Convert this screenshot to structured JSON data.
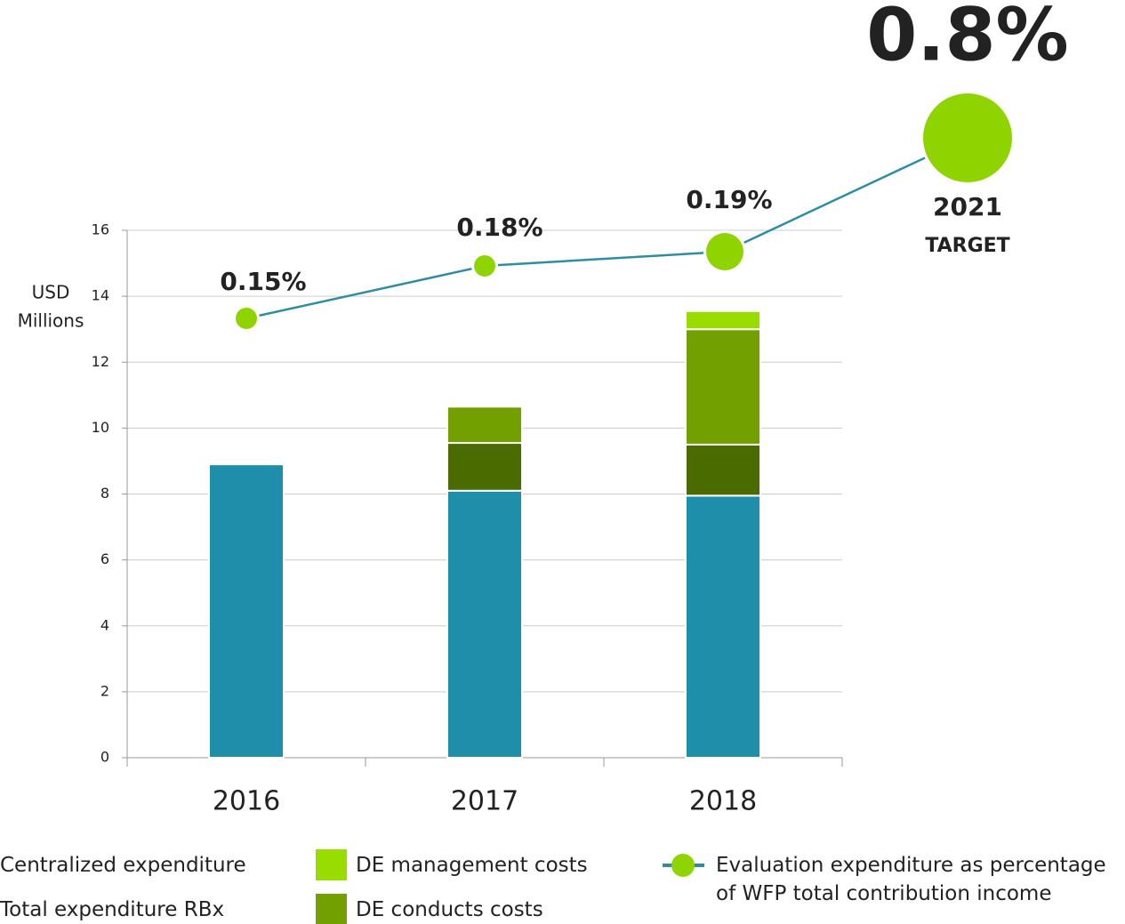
{
  "chart_data": {
    "type": "bar",
    "stacked": true,
    "y_label": [
      "USD",
      "Millions"
    ],
    "categories": [
      "2016",
      "2017",
      "2018"
    ],
    "series": [
      {
        "name": "Centralized expenditure",
        "color": "#1d8fab",
        "values": [
          8.9,
          8.1,
          7.95
        ]
      },
      {
        "name": "Total expenditure  RBx",
        "color": "#4a6b00",
        "values": [
          0,
          1.45,
          1.55
        ]
      },
      {
        "name": "DE conducts costs",
        "color": "#72a000",
        "values": [
          0,
          1.1,
          3.5
        ]
      },
      {
        "name": "DE management costs",
        "color": "#99dd00",
        "values": [
          0,
          0,
          0.55
        ]
      }
    ],
    "line_series": {
      "type": "line",
      "name": "Evaluation expenditure as percentage of WFP total contribution income",
      "color": "#2f8da3",
      "marker_color": "#8fd400",
      "values": [
        0.15,
        0.18,
        0.19,
        0.8
      ],
      "value_labels": [
        "0.15%",
        "0.18%",
        "0.19%",
        "0.8%"
      ],
      "target_year": "2021",
      "target_label": "TARGET"
    },
    "ylim": [
      0,
      16
    ],
    "yticks": [
      0,
      2,
      4,
      6,
      8,
      10,
      12,
      14,
      16
    ],
    "grid": true
  }
}
